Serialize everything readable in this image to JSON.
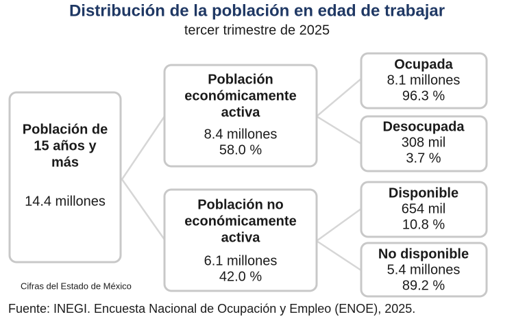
{
  "header": {
    "title": "Distribución de la población en edad de trabajar",
    "subtitle": "tercer trimestre de 2025"
  },
  "nodes": [
    {
      "label": [
        "Población de",
        "15 años y",
        "más"
      ],
      "values": [
        "14.4 millones"
      ]
    },
    {
      "label": [
        "Población",
        "económicamente",
        "activa"
      ],
      "values": [
        "8.4 millones",
        "58.0 %"
      ]
    },
    {
      "label": [
        "Población no",
        "económicamente",
        "activa"
      ],
      "values": [
        "6.1 millones",
        "42.0 %"
      ]
    },
    {
      "label": [
        "Ocupada"
      ],
      "values": [
        "8.1 millones",
        "96.3 %"
      ]
    },
    {
      "label": [
        "Desocupada"
      ],
      "values": [
        "308 mil",
        "3.7 %"
      ]
    },
    {
      "label": [
        "Disponible"
      ],
      "values": [
        "654 mil",
        "10.8 %"
      ]
    },
    {
      "label": [
        "No disponible"
      ],
      "values": [
        "5.4 millones",
        "89.2 %"
      ]
    }
  ],
  "note": "Cifras  del Estado de México",
  "source": "Fuente: INEGI. Encuesta Nacional de Ocupación y Empleo (ENOE), 2025."
}
